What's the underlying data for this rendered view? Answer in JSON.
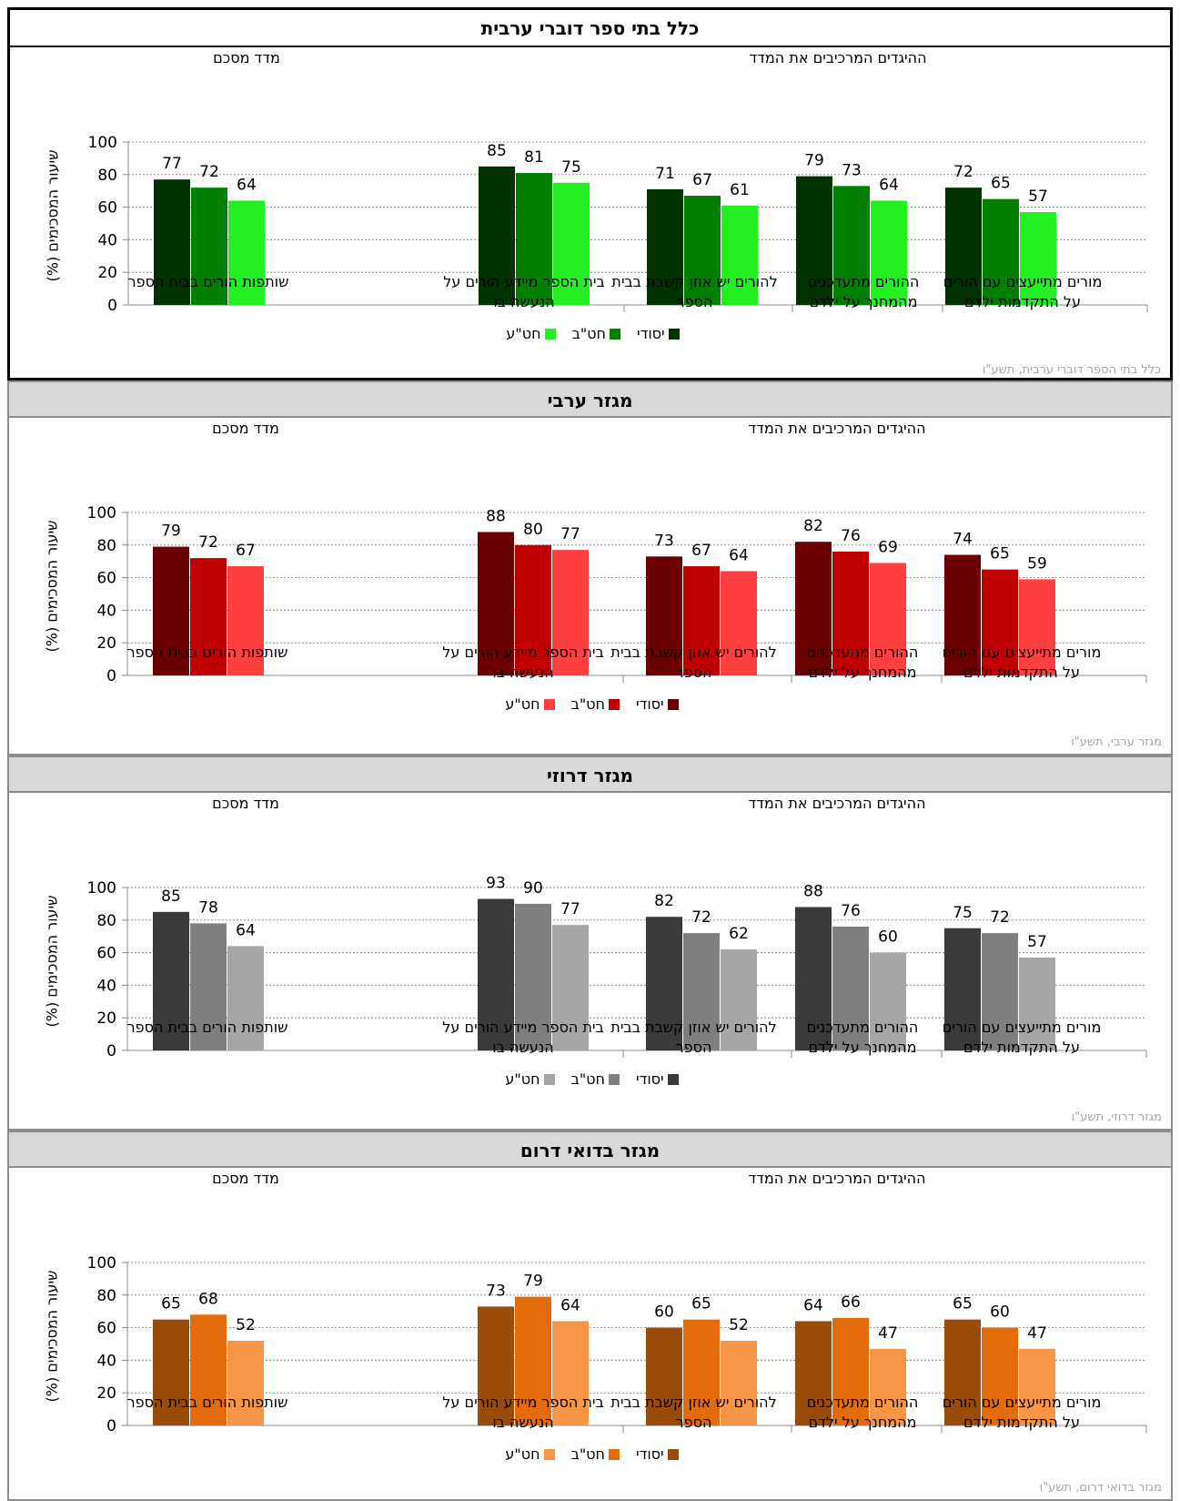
{
  "summary_title": "מדד מסכם",
  "items_title": "ההיגדים המרכיבים את המדד",
  "y_axis_label": "שיעור המסכימים (%)",
  "y_ticks": [
    "0",
    "20",
    "40",
    "60",
    "80",
    "100"
  ],
  "categories": [
    "שותפות הורים בבית הספר",
    "בית הספר מיידע הורים על הנעשה בו",
    "להורים יש אוזן קשבת בבית הספר",
    "ההורים מתעדכנים מהמחנך על ילדם",
    "מורים מתייעצים עם הורים על התקדמות ילדם"
  ],
  "series_names": [
    "יסודי",
    "חט\"ב",
    "חט\"ע"
  ],
  "panels": [
    {
      "title": "כלל בתי ספר דוברי ערבית",
      "source": "כלל בתי הספר דוברי ערבית, תשע\"ו",
      "colors": [
        "#003300",
        "#008000",
        "#22f022"
      ]
    },
    {
      "title": "מגזר ערבי",
      "source": "מגזר ערבי, תשע\"ו",
      "colors": [
        "#6b0000",
        "#c00000",
        "#ff4040"
      ]
    },
    {
      "title": "מגזר דרוזי",
      "source": "מגזר דרוזי, תשע\"ו",
      "colors": [
        "#3a3a3a",
        "#7f7f7f",
        "#a6a6a6"
      ]
    },
    {
      "title": "מגזר בדואי דרום",
      "source": "מגזר בדואי דרום, תשע\"ו",
      "colors": [
        "#994c0a",
        "#e36c0a",
        "#f79646"
      ]
    }
  ],
  "chart_data": [
    {
      "type": "bar",
      "title": "כלל בתי ספר דוברי ערבית",
      "ylabel": "שיעור המסכימים (%)",
      "ylim": [
        0,
        100
      ],
      "grid": true,
      "legend": "bottom",
      "categories": [
        "שותפות הורים בבית הספר",
        "בית הספר מיידע הורים על הנעשה בו",
        "להורים יש אוזן קשבת בבית הספר",
        "ההורים מתעדכנים מהמחנך על ילדם",
        "מורים מתייעצים עם הורים על התקדמות ילדם"
      ],
      "series": [
        {
          "name": "יסודי",
          "values": [
            77,
            85,
            71,
            79,
            72
          ]
        },
        {
          "name": "חט\"ב",
          "values": [
            72,
            81,
            67,
            73,
            65
          ]
        },
        {
          "name": "חט\"ע",
          "values": [
            64,
            75,
            61,
            64,
            57
          ]
        }
      ]
    },
    {
      "type": "bar",
      "title": "מגזר ערבי",
      "ylabel": "שיעור המסכימים (%)",
      "ylim": [
        0,
        100
      ],
      "grid": true,
      "legend": "bottom",
      "categories": [
        "שותפות הורים בבית הספר",
        "בית הספר מיידע הורים על הנעשה בו",
        "להורים יש אוזן קשבת בבית הספר",
        "ההורים מתעדכנים מהמחנך על ילדם",
        "מורים מתייעצים עם הורים על התקדמות ילדם"
      ],
      "series": [
        {
          "name": "יסודי",
          "values": [
            79,
            88,
            73,
            82,
            74
          ]
        },
        {
          "name": "חט\"ב",
          "values": [
            72,
            80,
            67,
            76,
            65
          ]
        },
        {
          "name": "חט\"ע",
          "values": [
            67,
            77,
            64,
            69,
            59
          ]
        }
      ]
    },
    {
      "type": "bar",
      "title": "מגזר דרוזי",
      "ylabel": "שיעור המסכימים (%)",
      "ylim": [
        0,
        100
      ],
      "grid": true,
      "legend": "bottom",
      "categories": [
        "שותפות הורים בבית הספר",
        "בית הספר מיידע הורים על הנעשה בו",
        "להורים יש אוזן קשבת בבית הספר",
        "ההורים מתעדכנים מהמחנך על ילדם",
        "מורים מתייעצים עם הורים על התקדמות ילדם"
      ],
      "series": [
        {
          "name": "יסודי",
          "values": [
            85,
            93,
            82,
            88,
            75
          ]
        },
        {
          "name": "חט\"ב",
          "values": [
            78,
            90,
            72,
            76,
            72
          ]
        },
        {
          "name": "חט\"ע",
          "values": [
            64,
            77,
            62,
            60,
            57
          ]
        }
      ]
    },
    {
      "type": "bar",
      "title": "מגזר בדואי דרום",
      "ylabel": "שיעור המסכימים (%)",
      "ylim": [
        0,
        100
      ],
      "grid": true,
      "legend": "bottom",
      "categories": [
        "שותפות הורים בבית הספר",
        "בית הספר מיידע הורים על הנעשה בו",
        "להורים יש אוזן קשבת בבית הספר",
        "ההורים מתעדכנים מהמחנך על ילדם",
        "מורים מתייעצים עם הורים על התקדמות ילדם"
      ],
      "series": [
        {
          "name": "יסודי",
          "values": [
            65,
            73,
            60,
            64,
            65
          ]
        },
        {
          "name": "חט\"ב",
          "values": [
            68,
            79,
            65,
            66,
            60
          ]
        },
        {
          "name": "חט\"ע",
          "values": [
            52,
            64,
            52,
            47,
            47
          ]
        }
      ]
    }
  ]
}
